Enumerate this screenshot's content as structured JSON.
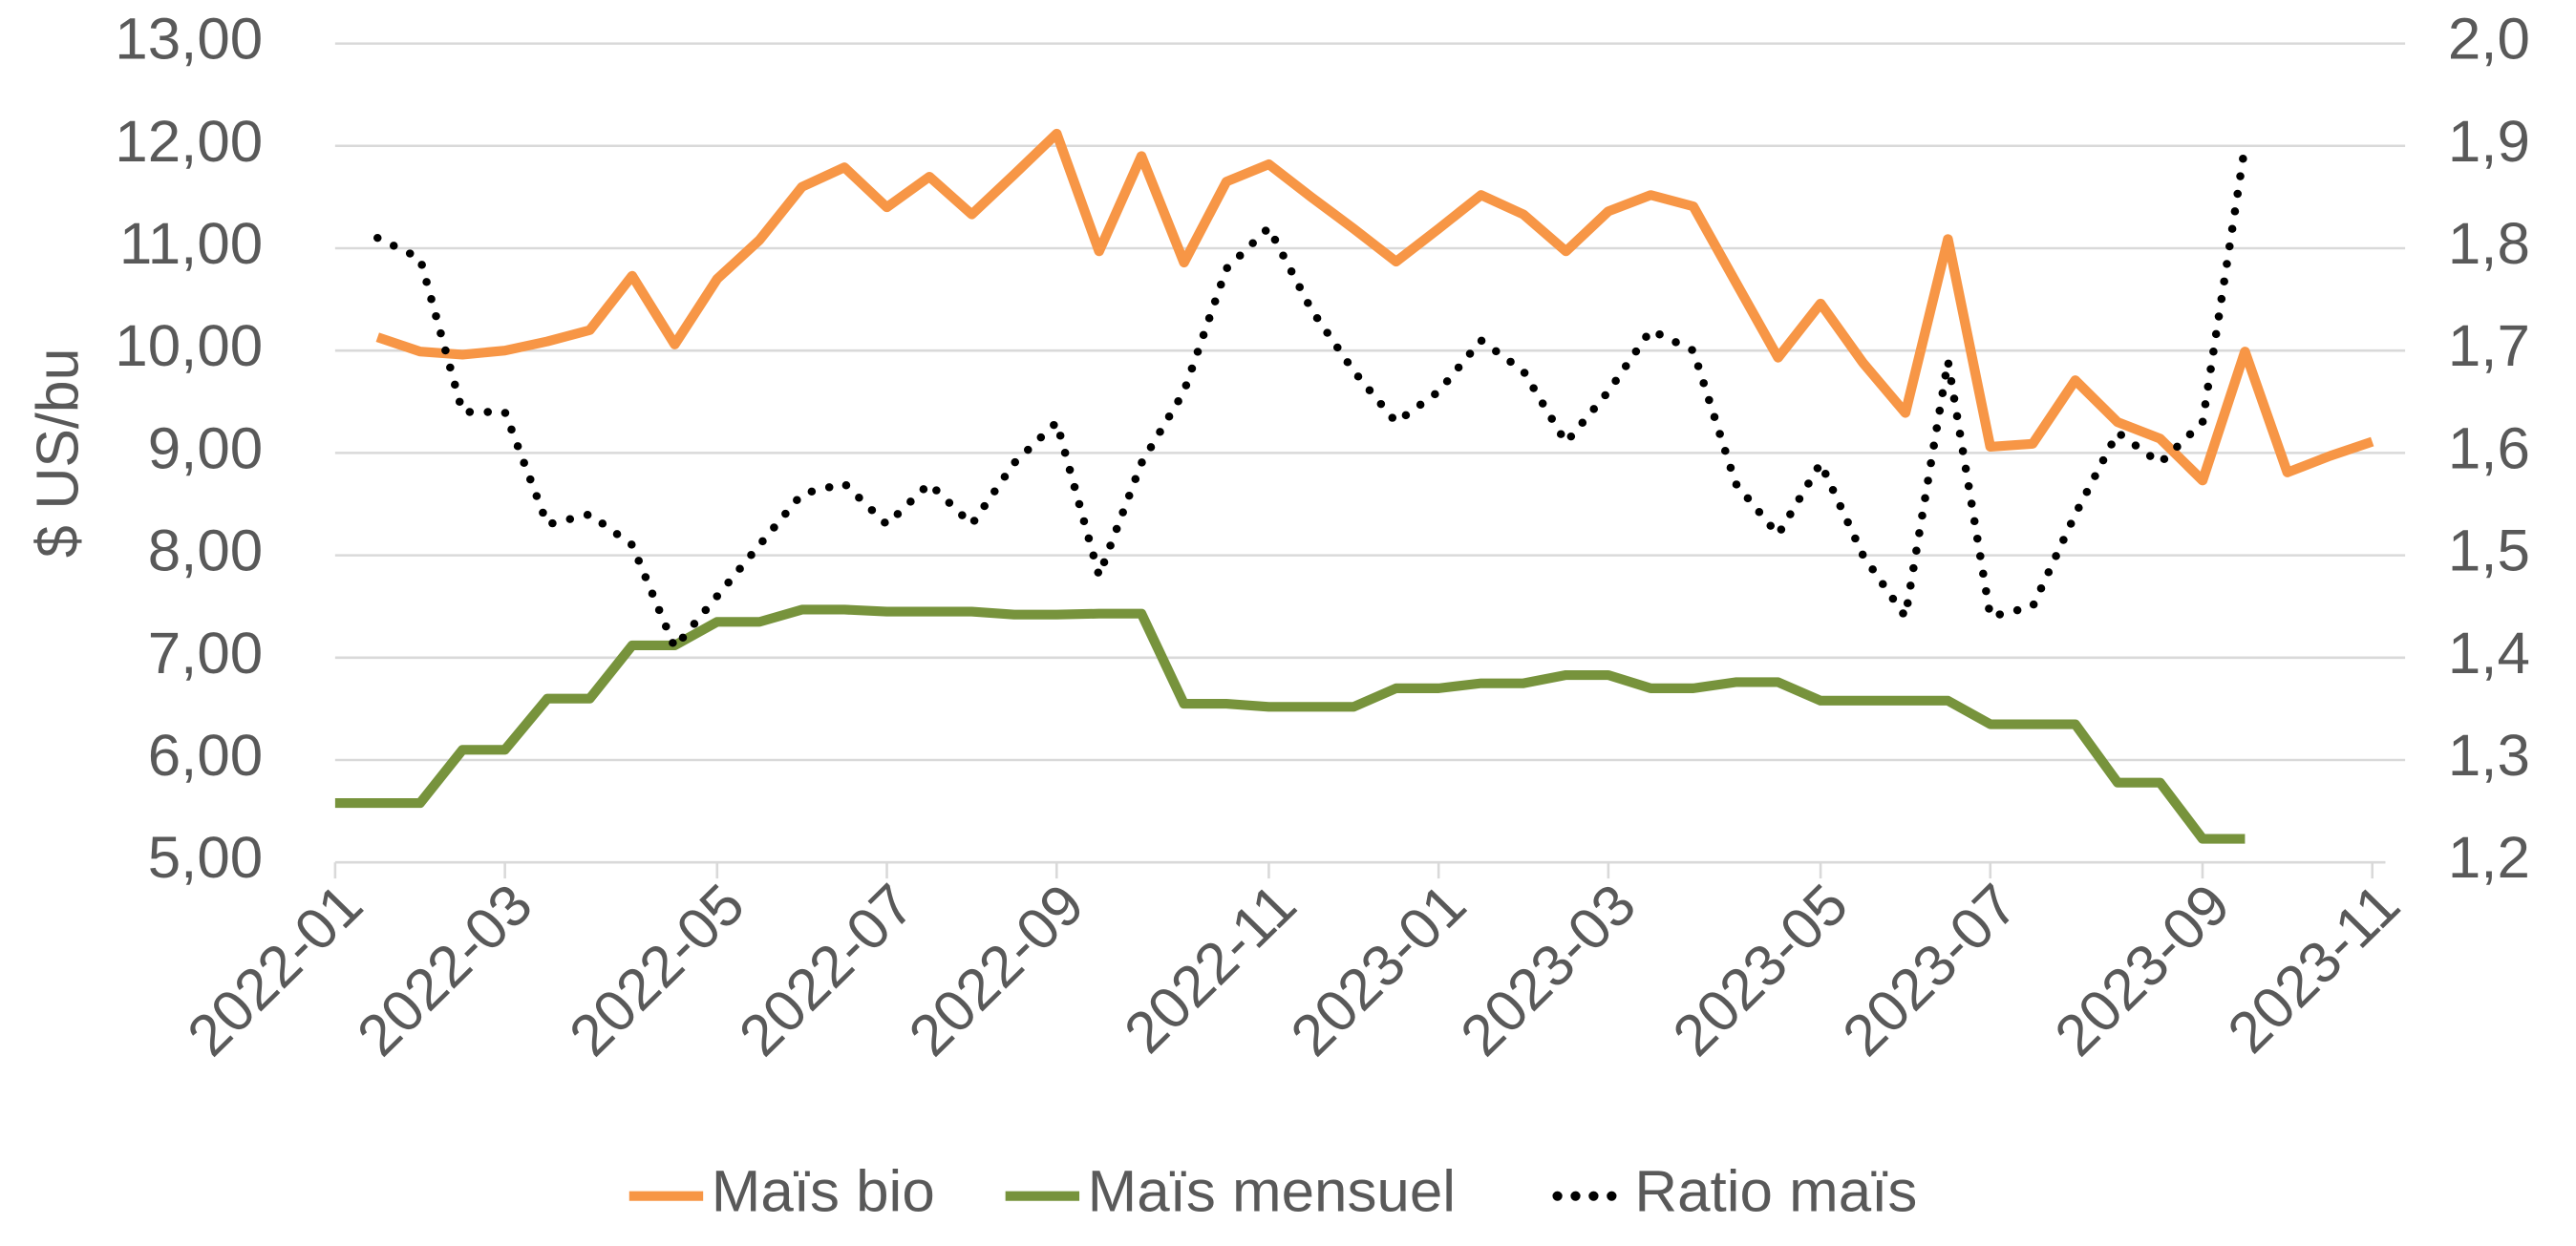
{
  "chart_data": {
    "type": "line",
    "ylabel": "$ US/bu",
    "categories": [
      "2022-01",
      null,
      null,
      null,
      "2022-03",
      null,
      null,
      null,
      null,
      "2022-05",
      null,
      null,
      null,
      "2022-07",
      null,
      null,
      null,
      "2022-09",
      null,
      null,
      null,
      null,
      "2022-11",
      null,
      null,
      null,
      "2023-01",
      null,
      null,
      null,
      "2023-03",
      null,
      null,
      null,
      null,
      "2023-05",
      null,
      null,
      null,
      "2023-07",
      null,
      null,
      null,
      null,
      "2023-09",
      null,
      null,
      null,
      "2023-11"
    ],
    "series": [
      {
        "name": "Maïs bio",
        "color": "#f79646",
        "style": "solid",
        "values": [
          null,
          10.13,
          9.99,
          9.96,
          10.0,
          10.09,
          10.2,
          10.73,
          10.06,
          10.7,
          11.08,
          11.6,
          11.79,
          11.4,
          11.7,
          11.33,
          11.72,
          12.12,
          10.97,
          11.9,
          10.86,
          11.65,
          11.82,
          11.5,
          11.19,
          10.87,
          11.19,
          11.52,
          11.33,
          10.97,
          11.36,
          11.52,
          11.41,
          10.67,
          9.93,
          10.46,
          9.88,
          9.39,
          11.09,
          9.06,
          9.09,
          9.71,
          9.3,
          9.14,
          8.73,
          9.99,
          8.81,
          8.97,
          9.11
        ]
      },
      {
        "name": "Maïs mensuel",
        "color": "#77933c",
        "style": "solid",
        "values": [
          5.58,
          5.58,
          5.58,
          6.1,
          6.1,
          6.6,
          6.6,
          7.12,
          7.12,
          7.35,
          7.35,
          7.47,
          7.47,
          7.45,
          7.45,
          7.45,
          7.42,
          7.42,
          7.43,
          7.43,
          6.55,
          6.55,
          6.52,
          6.52,
          6.52,
          6.7,
          6.7,
          6.75,
          6.75,
          6.83,
          6.83,
          6.7,
          6.7,
          6.76,
          6.76,
          6.58,
          6.58,
          6.58,
          6.58,
          6.35,
          6.35,
          6.35,
          5.78,
          5.78,
          5.23,
          5.23,
          null,
          null,
          null
        ]
      },
      {
        "name": "Ratio maïs",
        "color": "#000000",
        "style": "dotted",
        "axis": "y2",
        "values": [
          null,
          1.81,
          1.79,
          1.64,
          1.64,
          1.53,
          1.54,
          1.51,
          1.41,
          1.46,
          1.51,
          1.56,
          1.57,
          1.53,
          1.57,
          1.53,
          1.59,
          1.63,
          1.48,
          1.59,
          1.66,
          1.78,
          1.82,
          1.74,
          1.68,
          1.63,
          1.66,
          1.71,
          1.68,
          1.61,
          1.66,
          1.72,
          1.7,
          1.57,
          1.52,
          1.59,
          1.5,
          1.44,
          1.69,
          1.44,
          1.45,
          1.54,
          1.62,
          1.59,
          1.63,
          1.9,
          null,
          null,
          null
        ]
      }
    ],
    "ylim": [
      5,
      13
    ],
    "yticks": [
      {
        "value": 5,
        "label": "5,00"
      },
      {
        "value": 6,
        "label": "6,00"
      },
      {
        "value": 7,
        "label": "7,00"
      },
      {
        "value": 8,
        "label": "8,00"
      },
      {
        "value": 9,
        "label": "9,00"
      },
      {
        "value": 10,
        "label": "10,00"
      },
      {
        "value": 11,
        "label": "11,00"
      },
      {
        "value": 12,
        "label": "12,00"
      },
      {
        "value": 13,
        "label": "13,00"
      }
    ],
    "y2lim": [
      1.2,
      2.0
    ],
    "y2ticks": [
      {
        "value": 1.2,
        "label": "1,2"
      },
      {
        "value": 1.3,
        "label": "1,3"
      },
      {
        "value": 1.4,
        "label": "1,4"
      },
      {
        "value": 1.5,
        "label": "1,5"
      },
      {
        "value": 1.6,
        "label": "1,6"
      },
      {
        "value": 1.7,
        "label": "1,7"
      },
      {
        "value": 1.8,
        "label": "1,8"
      },
      {
        "value": 1.9,
        "label": "1,9"
      },
      {
        "value": 2.0,
        "label": "2,0"
      }
    ],
    "grid": true,
    "legend": "bottom"
  }
}
